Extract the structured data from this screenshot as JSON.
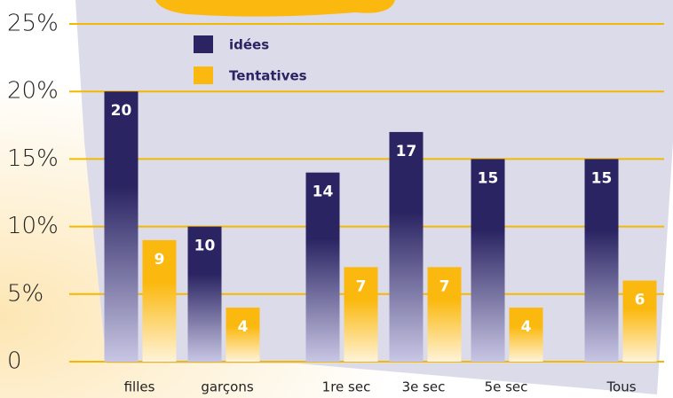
{
  "chart_data": {
    "type": "bar",
    "categories": [
      "filles",
      "garçons",
      "1re sec",
      "3e sec",
      "5e sec",
      "Tous"
    ],
    "series": [
      {
        "name": "idées",
        "color": "#2a2462",
        "values": [
          20,
          10,
          14,
          17,
          15,
          15
        ]
      },
      {
        "name": "Tentatives",
        "color": "#fbb90f",
        "values": [
          9,
          4,
          7,
          7,
          4,
          6
        ]
      }
    ],
    "ylim": [
      0,
      25
    ],
    "yticks": [
      0,
      {
        "value": 5,
        "label": "5%"
      },
      {
        "value": 10,
        "label": "10%"
      },
      {
        "value": 15,
        "label": "15%"
      },
      {
        "value": 20,
        "label": "20%"
      },
      {
        "value": 25,
        "label": "25%"
      }
    ],
    "grid": true
  }
}
